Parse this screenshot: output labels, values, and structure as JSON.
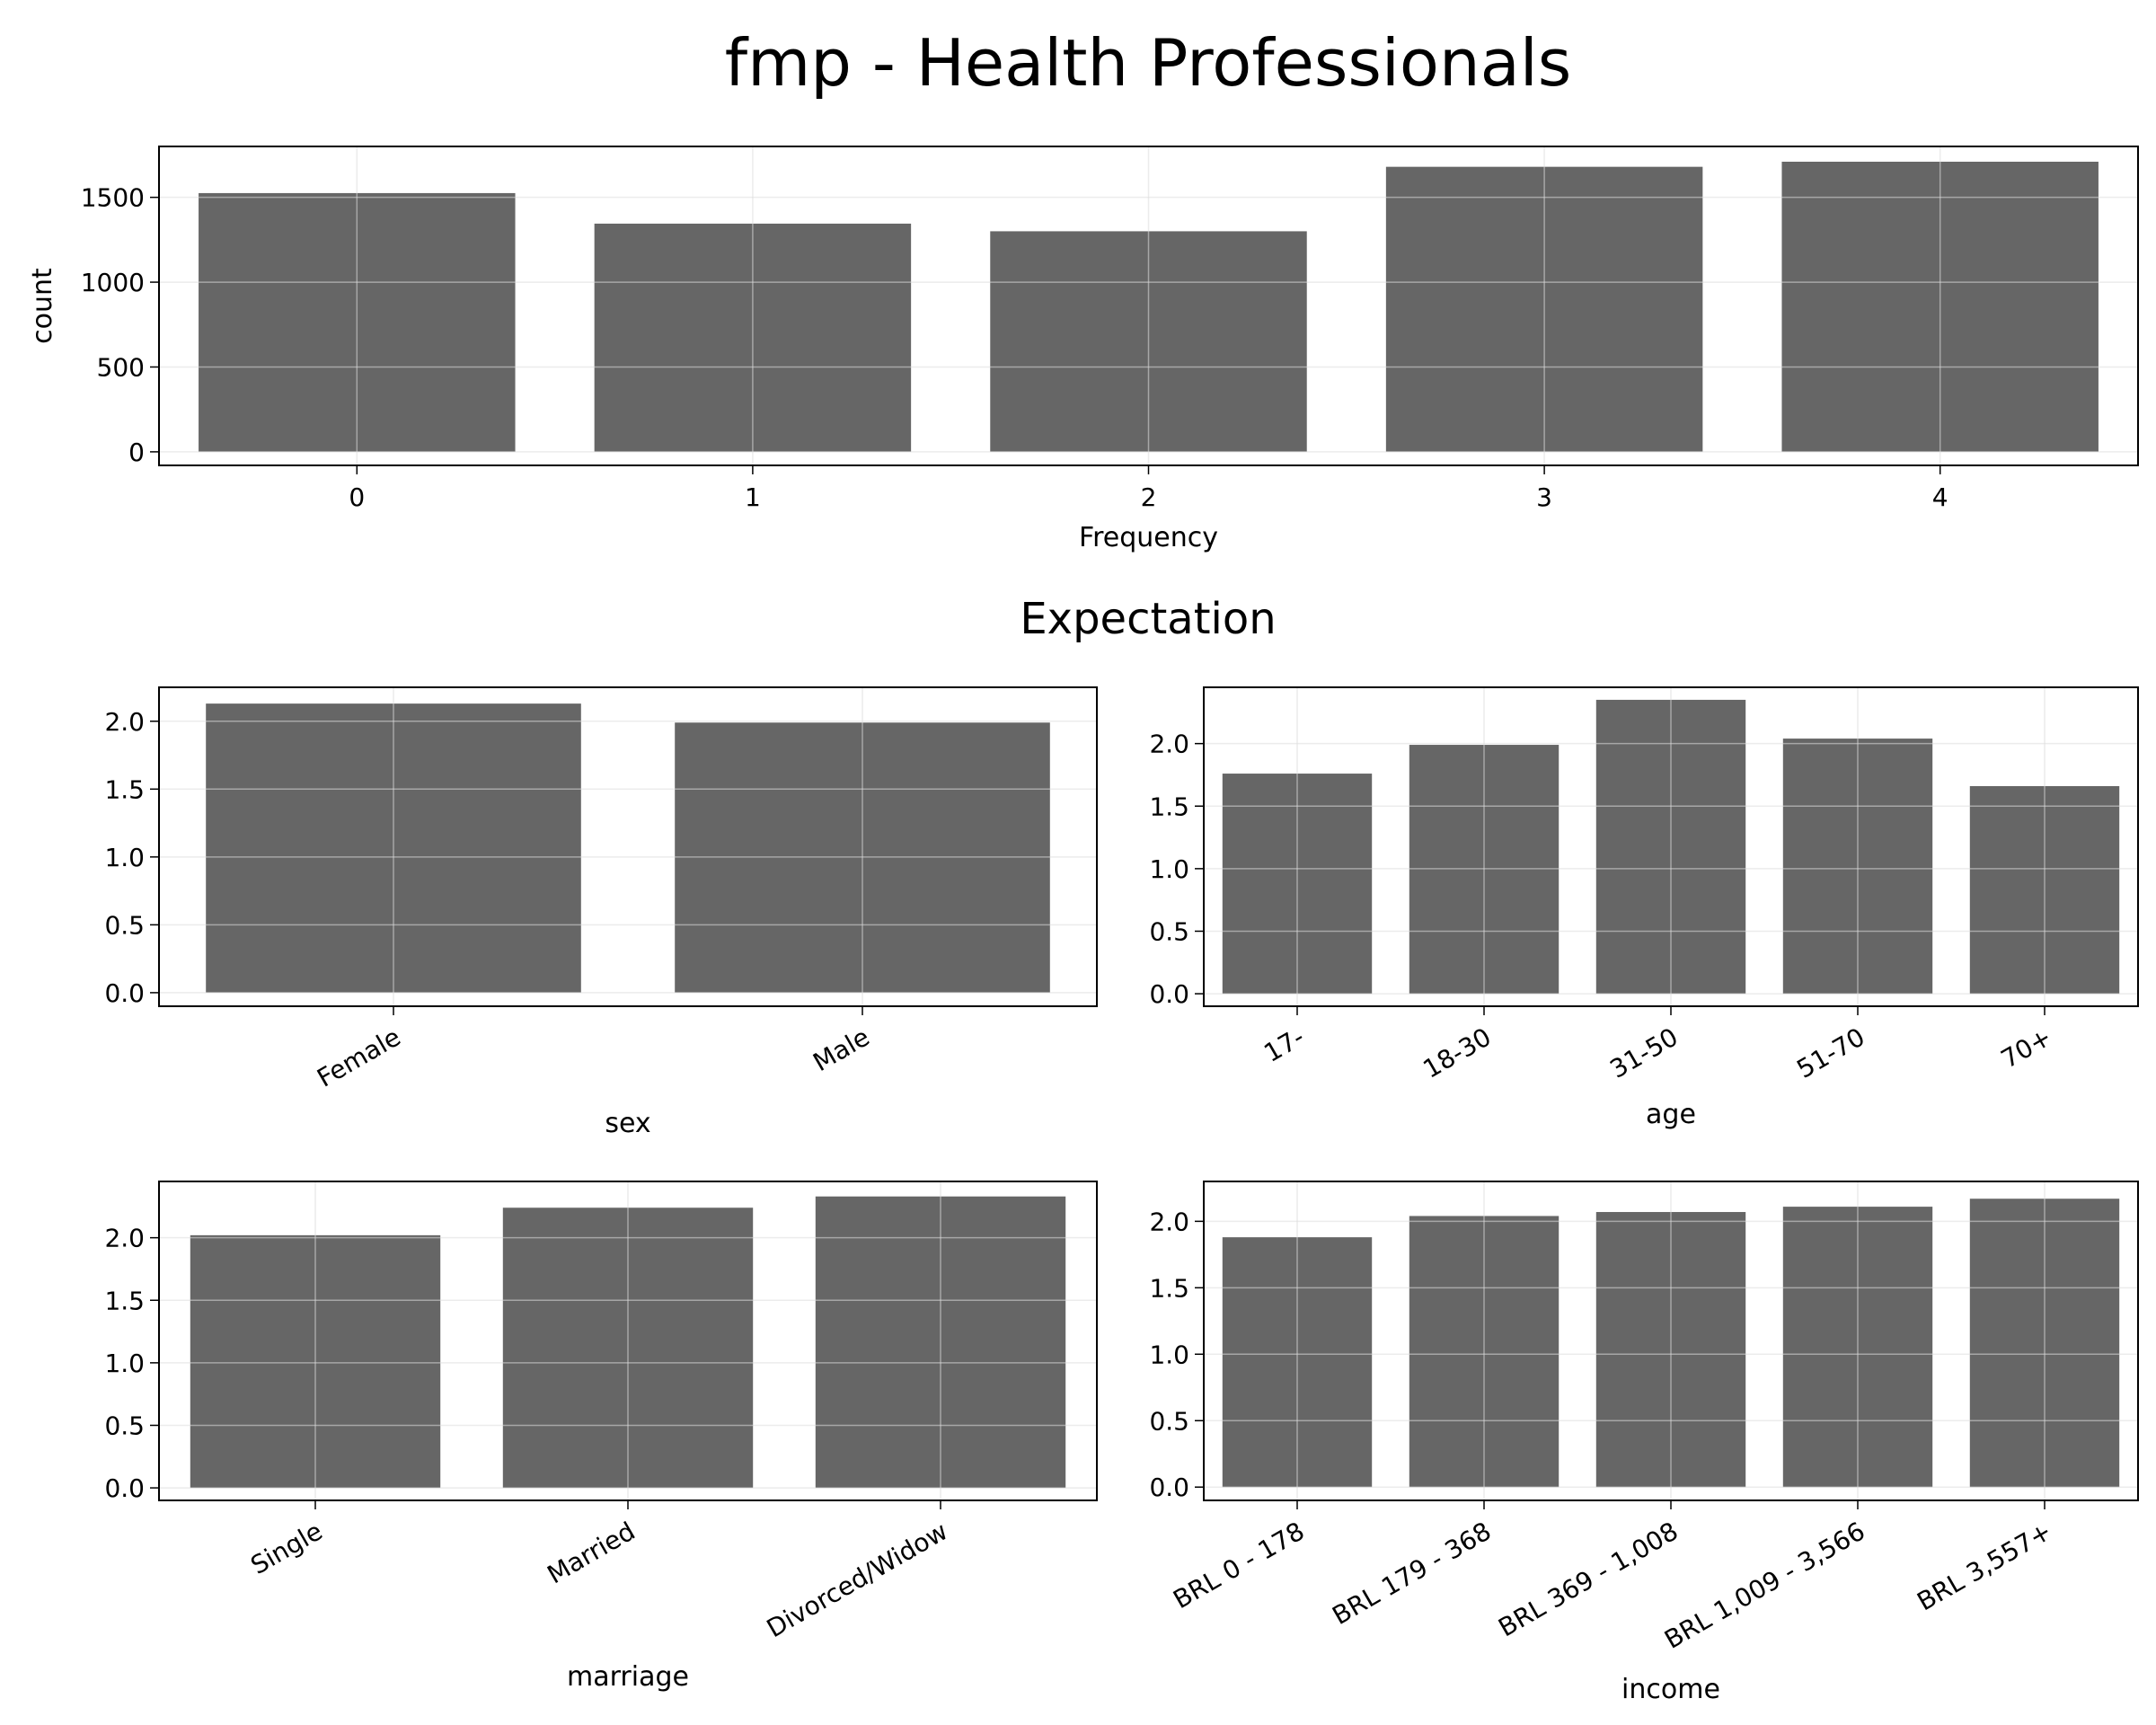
{
  "title": "fmp - Health Professionals",
  "subtitle": "Expectation",
  "colors": {
    "bar": "#666666",
    "grid": "#dcdcdc",
    "frame": "#000000"
  },
  "chart_data": [
    {
      "id": "frequency",
      "type": "bar",
      "categories": [
        "0",
        "1",
        "2",
        "3",
        "4"
      ],
      "values": [
        1525,
        1345,
        1300,
        1680,
        1710
      ],
      "xlabel": "Frequency",
      "ylabel": "count",
      "ylim": [
        -80,
        1800
      ],
      "yticks": [
        0,
        500,
        1000,
        1500
      ],
      "ytick_labels": [
        "0",
        "500",
        "1000",
        "1500"
      ],
      "grid": true
    },
    {
      "id": "sex",
      "type": "bar",
      "categories": [
        "Female",
        "Male"
      ],
      "values": [
        2.13,
        1.99
      ],
      "xlabel": "sex",
      "ylabel": "",
      "ylim": [
        -0.1,
        2.25
      ],
      "yticks": [
        0,
        0.5,
        1,
        1.5,
        2
      ],
      "ytick_labels": [
        "0.0",
        "0.5",
        "1.0",
        "1.5",
        "2.0"
      ],
      "grid": true
    },
    {
      "id": "age",
      "type": "bar",
      "categories": [
        "17-",
        "18-30",
        "31-50",
        "51-70",
        "70+"
      ],
      "values": [
        1.76,
        1.99,
        2.35,
        2.04,
        1.66
      ],
      "xlabel": "age",
      "ylabel": "",
      "ylim": [
        -0.1,
        2.45
      ],
      "yticks": [
        0,
        0.5,
        1,
        1.5,
        2
      ],
      "ytick_labels": [
        "0.0",
        "0.5",
        "1.0",
        "1.5",
        "2.0"
      ],
      "grid": true
    },
    {
      "id": "marriage",
      "type": "bar",
      "categories": [
        "Single",
        "Married",
        "Divorced/Widow"
      ],
      "values": [
        2.02,
        2.24,
        2.33
      ],
      "xlabel": "marriage",
      "ylabel": "",
      "ylim": [
        -0.1,
        2.45
      ],
      "yticks": [
        0,
        0.5,
        1,
        1.5,
        2
      ],
      "ytick_labels": [
        "0.0",
        "0.5",
        "1.0",
        "1.5",
        "2.0"
      ],
      "grid": true
    },
    {
      "id": "income",
      "type": "bar",
      "categories": [
        "BRL 0 - 178",
        "BRL 179 - 368",
        "BRL 369 - 1,008",
        "BRL 1,009 - 3,566",
        "BRL 3,557+"
      ],
      "values": [
        1.88,
        2.04,
        2.07,
        2.11,
        2.17
      ],
      "xlabel": "income",
      "ylabel": "",
      "ylim": [
        -0.1,
        2.3
      ],
      "yticks": [
        0,
        0.5,
        1,
        1.5,
        2
      ],
      "ytick_labels": [
        "0.0",
        "0.5",
        "1.0",
        "1.5",
        "2.0"
      ],
      "grid": true
    }
  ]
}
